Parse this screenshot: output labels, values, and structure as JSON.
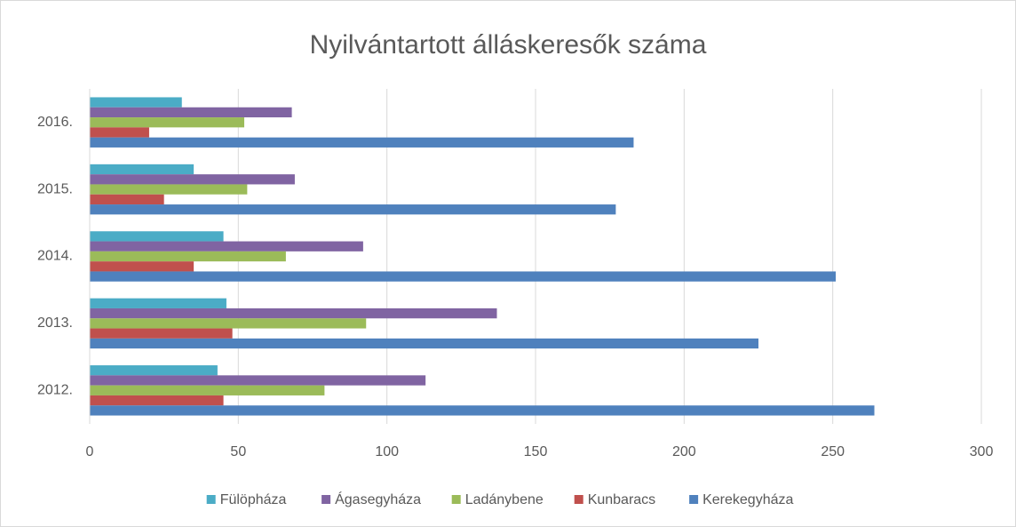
{
  "chart_data": {
    "type": "hbar",
    "title": "Nyilvántartott álláskeresők száma",
    "categories": [
      "2012.",
      "2013.",
      "2014.",
      "2015.",
      "2016."
    ],
    "series": [
      {
        "name": "Fülöpháza",
        "color": "#4bacc6",
        "values": [
          43,
          46,
          45,
          35,
          31
        ]
      },
      {
        "name": "Ágasegyháza",
        "color": "#8064a2",
        "values": [
          113,
          137,
          92,
          69,
          68
        ]
      },
      {
        "name": "Ladánybene",
        "color": "#9bbb59",
        "values": [
          79,
          93,
          66,
          53,
          52
        ]
      },
      {
        "name": "Kunbaracs",
        "color": "#c0504d",
        "values": [
          45,
          48,
          35,
          25,
          20
        ]
      },
      {
        "name": "Kerekegyháza",
        "color": "#4f81bd",
        "values": [
          264,
          225,
          251,
          177,
          183
        ]
      }
    ],
    "xlim": [
      0,
      300
    ],
    "xticks": [
      0,
      50,
      100,
      150,
      200,
      250,
      300
    ],
    "grid": true,
    "legend": "bottom"
  }
}
